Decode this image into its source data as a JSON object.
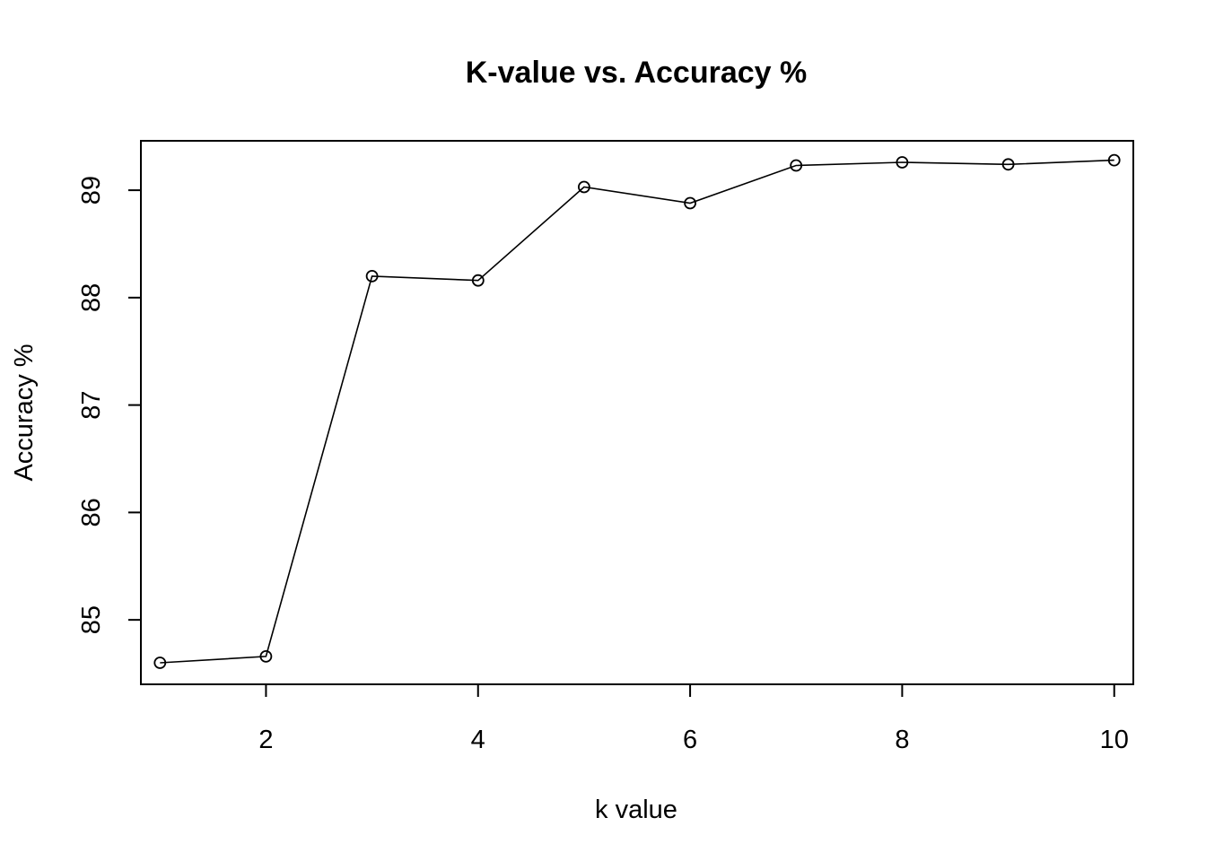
{
  "chart_data": {
    "type": "line",
    "title": "K-value vs. Accuracy %",
    "xlabel": "k value",
    "ylabel": "Accuracy %",
    "x": [
      1,
      2,
      3,
      4,
      5,
      6,
      7,
      8,
      9,
      10
    ],
    "series": [
      {
        "values": [
          84.6,
          84.66,
          88.2,
          88.16,
          89.03,
          88.88,
          89.23,
          89.26,
          89.24,
          89.28
        ]
      }
    ],
    "xlim": [
      0.82,
      10.18
    ],
    "ylim": [
      84.4,
      89.46
    ],
    "xticks": [
      2,
      4,
      6,
      8,
      10
    ],
    "yticks": [
      85,
      86,
      87,
      88,
      89
    ],
    "grid": false,
    "marker": "open-circle"
  }
}
